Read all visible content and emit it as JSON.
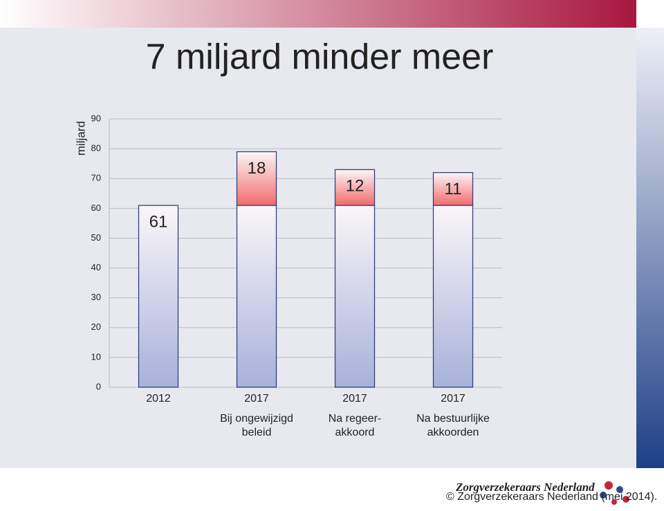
{
  "chart_data": {
    "type": "stacked-bar",
    "title": "7 miljard minder meer",
    "ylabel": "miljard",
    "categories": [
      "2012",
      "2017",
      "2017",
      "2017"
    ],
    "category_notes": [
      null,
      [
        "Bij ongewijzigd",
        "beleid"
      ],
      [
        "Na regeer-",
        "akkoord"
      ],
      [
        "Na bestuurlijke",
        "akkoorden"
      ]
    ],
    "series": [
      {
        "color": "#a7b1da",
        "values": [
          61,
          61,
          61,
          61
        ],
        "labeled": [
          true,
          false,
          false,
          false
        ]
      },
      {
        "color": "#f26b6b",
        "values": [
          null,
          18,
          12,
          11
        ],
        "labeled": [
          false,
          true,
          true,
          true
        ]
      }
    ],
    "ylim": [
      0,
      90
    ],
    "yticks": [
      0,
      10,
      20,
      30,
      40,
      50,
      60,
      70,
      80,
      90
    ],
    "grid": true
  },
  "footer": {
    "logo_text": "Zorgverzekeraars Nederland",
    "copyright": "© Zorgverzekeraars Nederland (mei 2014)."
  }
}
